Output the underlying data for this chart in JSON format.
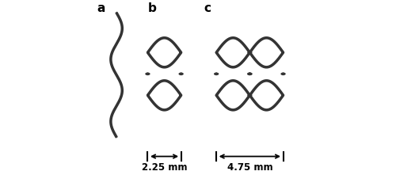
{
  "fig_width": 5.0,
  "fig_height": 2.21,
  "dpi": 100,
  "background": "#ffffff",
  "line_color": "#333333",
  "line_width": 1.5,
  "labels": [
    "a",
    "b",
    "c"
  ],
  "label_fontsize": 11,
  "label_fontweight": "bold",
  "dim_label_b": "2.25 mm",
  "dim_label_c": "4.75 mm",
  "dim_fontsize": 8.5
}
